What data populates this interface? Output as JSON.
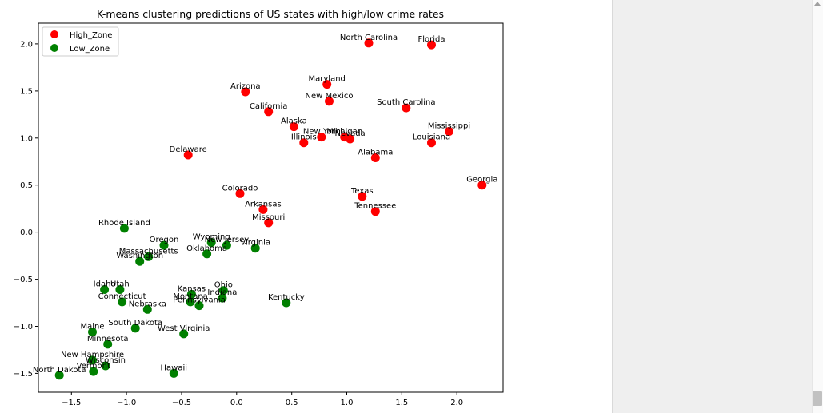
{
  "chart_data": {
    "type": "scatter",
    "title": "K-means clustering predictions of US states with high/low crime rates",
    "xlabel": "",
    "ylabel": "",
    "xlim": [
      -1.8,
      2.42
    ],
    "ylim": [
      -1.7,
      2.22
    ],
    "xticks": [
      -1.5,
      -1.0,
      -0.5,
      0.0,
      0.5,
      1.0,
      1.5,
      2.0
    ],
    "yticks": [
      -1.5,
      -1.0,
      -0.5,
      0.0,
      0.5,
      1.0,
      1.5,
      2.0
    ],
    "xtick_labels": [
      "−1.5",
      "−1.0",
      "−0.5",
      "0.0",
      "0.5",
      "1.0",
      "1.5",
      "2.0"
    ],
    "ytick_labels": [
      "−1.5",
      "−1.0",
      "−0.5",
      "0.0",
      "0.5",
      "1.0",
      "1.5",
      "2.0"
    ],
    "grid": false,
    "legend": {
      "position": "top-left"
    },
    "series": [
      {
        "name": "High_Zone",
        "color": "#ff0000",
        "points": [
          {
            "label": "North Carolina",
            "x": 1.2,
            "y": 2.01
          },
          {
            "label": "Florida",
            "x": 1.77,
            "y": 1.99
          },
          {
            "label": "Arizona",
            "x": 0.08,
            "y": 1.49
          },
          {
            "label": "Maryland",
            "x": 0.82,
            "y": 1.57
          },
          {
            "label": "New Mexico",
            "x": 0.84,
            "y": 1.39
          },
          {
            "label": "California",
            "x": 0.29,
            "y": 1.28
          },
          {
            "label": "South Carolina",
            "x": 1.54,
            "y": 1.32
          },
          {
            "label": "Alaska",
            "x": 0.52,
            "y": 1.12
          },
          {
            "label": "Mississippi",
            "x": 1.93,
            "y": 1.07
          },
          {
            "label": "New York",
            "x": 0.77,
            "y": 1.01
          },
          {
            "label": "Michigan",
            "x": 0.98,
            "y": 1.01
          },
          {
            "label": "Nevada",
            "x": 1.03,
            "y": 0.99
          },
          {
            "label": "Illinois",
            "x": 0.61,
            "y": 0.95
          },
          {
            "label": "Louisiana",
            "x": 1.77,
            "y": 0.95
          },
          {
            "label": "Delaware",
            "x": -0.44,
            "y": 0.82
          },
          {
            "label": "Alabama",
            "x": 1.26,
            "y": 0.79
          },
          {
            "label": "Georgia",
            "x": 2.23,
            "y": 0.5
          },
          {
            "label": "Colorado",
            "x": 0.03,
            "y": 0.41
          },
          {
            "label": "Texas",
            "x": 1.14,
            "y": 0.38
          },
          {
            "label": "Arkansas",
            "x": 0.24,
            "y": 0.24
          },
          {
            "label": "Tennessee",
            "x": 1.26,
            "y": 0.22
          },
          {
            "label": "Missouri",
            "x": 0.29,
            "y": 0.1
          }
        ]
      },
      {
        "name": "Low_Zone",
        "color": "#008000",
        "points": [
          {
            "label": "Rhode Island",
            "x": -1.02,
            "y": 0.04
          },
          {
            "label": "Oregon",
            "x": -0.66,
            "y": -0.14
          },
          {
            "label": "Wyoming",
            "x": -0.23,
            "y": -0.11
          },
          {
            "label": "New Jersey",
            "x": -0.09,
            "y": -0.14
          },
          {
            "label": "Virginia",
            "x": 0.17,
            "y": -0.17
          },
          {
            "label": "Massachusetts",
            "x": -0.8,
            "y": -0.26
          },
          {
            "label": "Oklahoma",
            "x": -0.27,
            "y": -0.23
          },
          {
            "label": "Washington",
            "x": -0.88,
            "y": -0.31
          },
          {
            "label": "Idaho",
            "x": -1.2,
            "y": -0.61
          },
          {
            "label": "Utah",
            "x": -1.06,
            "y": -0.61
          },
          {
            "label": "Ohio",
            "x": -0.12,
            "y": -0.62
          },
          {
            "label": "Kansas",
            "x": -0.41,
            "y": -0.66
          },
          {
            "label": "Indiana",
            "x": -0.13,
            "y": -0.7
          },
          {
            "label": "Montana",
            "x": -0.42,
            "y": -0.74
          },
          {
            "label": "Pennsylvania",
            "x": -0.34,
            "y": -0.78
          },
          {
            "label": "Connecticut",
            "x": -1.04,
            "y": -0.74
          },
          {
            "label": "Kentucky",
            "x": 0.45,
            "y": -0.75
          },
          {
            "label": "Nebraska",
            "x": -0.81,
            "y": -0.82
          },
          {
            "label": "South Dakota",
            "x": -0.92,
            "y": -1.02
          },
          {
            "label": "Maine",
            "x": -1.31,
            "y": -1.06
          },
          {
            "label": "West Virginia",
            "x": -0.48,
            "y": -1.08
          },
          {
            "label": "Minnesota",
            "x": -1.17,
            "y": -1.19
          },
          {
            "label": "New Hampshire",
            "x": -1.31,
            "y": -1.36
          },
          {
            "label": "Wisconsin",
            "x": -1.19,
            "y": -1.42
          },
          {
            "label": "Vermont",
            "x": -1.3,
            "y": -1.48
          },
          {
            "label": "Hawaii",
            "x": -0.57,
            "y": -1.5
          },
          {
            "label": "North Dakota",
            "x": -1.61,
            "y": -1.52
          }
        ]
      }
    ]
  }
}
